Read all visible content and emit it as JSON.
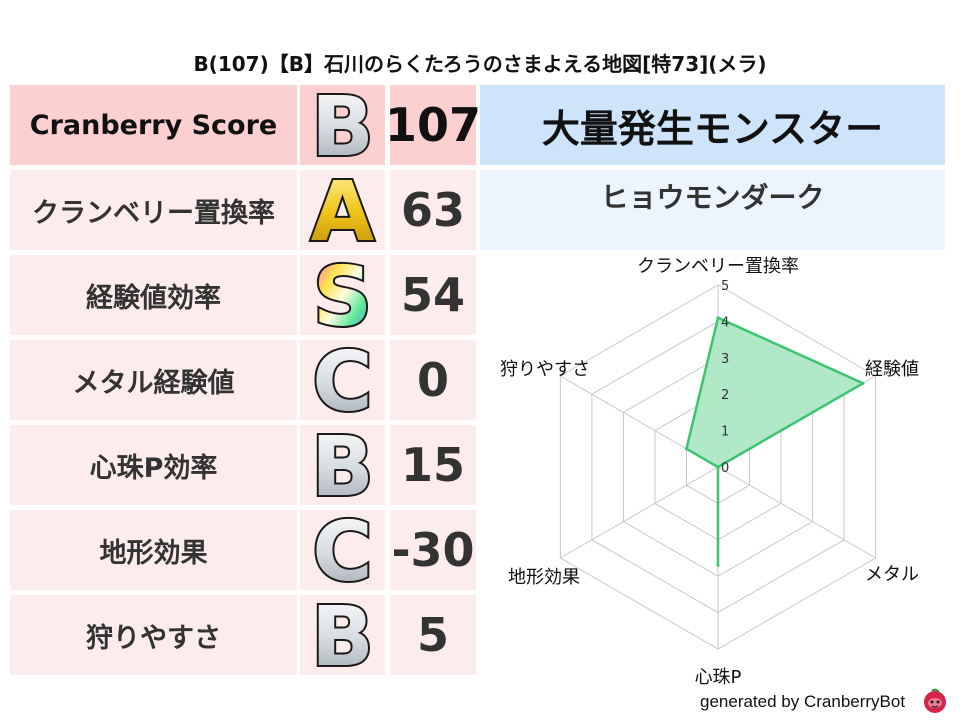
{
  "title": "B(107)【B】石川のらくたろうのさまよえる地図[特73](メラ)",
  "score_table": {
    "header": {
      "label": "Cranberry Score",
      "grade": "B",
      "value": "107"
    },
    "rows": [
      {
        "label": "クランベリー置換率",
        "grade": "A",
        "value": "63"
      },
      {
        "label": "経験値効率",
        "grade": "S",
        "value": "54"
      },
      {
        "label": "メタル経験値",
        "grade": "C",
        "value": "0"
      },
      {
        "label": "心珠P効率",
        "grade": "B",
        "value": "15"
      },
      {
        "label": "地形効果",
        "grade": "C",
        "value": "-30"
      },
      {
        "label": "狩りやすさ",
        "grade": "B",
        "value": "5"
      }
    ]
  },
  "monster_panel": {
    "heading": "大量発生モンスター",
    "name": "ヒョウモンダーク"
  },
  "chart_data": {
    "type": "radar",
    "axes": [
      "クランベリー置換率",
      "経験値",
      "メタル",
      "心珠P",
      "地形効果",
      "狩りやすさ"
    ],
    "values": [
      4.1,
      4.6,
      0,
      2.7,
      0,
      1.0
    ],
    "rlim": [
      0,
      5
    ],
    "ticks": [
      "0",
      "1",
      "2",
      "3",
      "4",
      "5"
    ],
    "grid": true,
    "colors": {
      "line": "#3cc46e",
      "fill": "#a9e6c2",
      "grid": "#c8c8c8"
    }
  },
  "footer": {
    "text": "generated by CranberryBot",
    "logo_icon": "cranberry-mascot-icon"
  },
  "grade_colors": {
    "S": "rainbow",
    "A": "#f0c419",
    "B": "#d8dde2",
    "C": "#d8dde2"
  }
}
